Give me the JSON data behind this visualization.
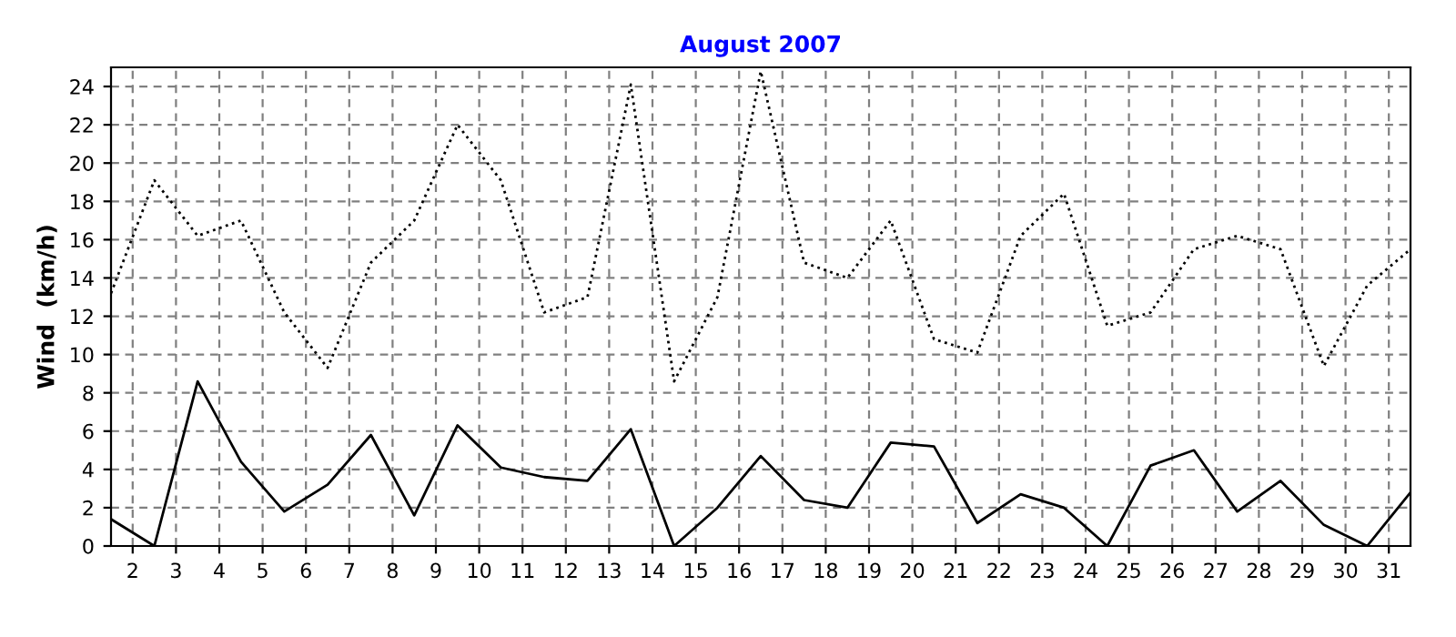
{
  "chart_data": {
    "type": "line",
    "title": "August 2007",
    "ylabel": "Wind  (km/h)",
    "x": [
      1.5,
      2.5,
      3.5,
      4.5,
      5.5,
      6.5,
      7.5,
      8.5,
      9.5,
      10.5,
      11.5,
      12.5,
      13.5,
      14.5,
      15.5,
      16.5,
      17.5,
      18.5,
      19.5,
      20.5,
      21.5,
      22.5,
      23.5,
      24.5,
      25.5,
      26.5,
      27.5,
      28.5,
      29.5,
      30.5,
      31.5
    ],
    "series": [
      {
        "color": "#000000",
        "line_style": "dotted",
        "values": [
          13.2,
          19.1,
          16.2,
          17.0,
          12.2,
          9.3,
          14.8,
          17.0,
          22.0,
          19.1,
          12.2,
          13.0,
          24.1,
          8.6,
          13.0,
          24.8,
          14.8,
          14.0,
          17.0,
          10.8,
          10.1,
          16.2,
          18.4,
          11.5,
          12.2,
          15.5,
          16.2,
          15.5,
          9.4,
          13.6,
          15.5
        ]
      },
      {
        "color": "#000000",
        "line_style": "solid",
        "values": [
          1.4,
          0,
          8.6,
          4.4,
          1.8,
          3.2,
          5.8,
          1.6,
          6.3,
          4.1,
          3.6,
          3.4,
          6.1,
          0,
          2.0,
          4.7,
          2.4,
          2.0,
          5.4,
          5.2,
          1.2,
          2.7,
          2.0,
          0,
          4.2,
          5.0,
          1.8,
          3.4,
          1.1,
          0,
          2.8
        ]
      }
    ],
    "xlim": [
      1.5,
      31.5
    ],
    "xticks": [
      2,
      3,
      4,
      5,
      6,
      7,
      8,
      9,
      10,
      11,
      12,
      13,
      14,
      15,
      16,
      17,
      18,
      19,
      20,
      21,
      22,
      23,
      24,
      25,
      26,
      27,
      28,
      29,
      30,
      31
    ],
    "ylim": [
      0,
      25
    ],
    "yticks": [
      0,
      2,
      4,
      6,
      8,
      10,
      12,
      14,
      16,
      18,
      20,
      22,
      24
    ],
    "grid": true,
    "legend": false,
    "marker": "none"
  }
}
